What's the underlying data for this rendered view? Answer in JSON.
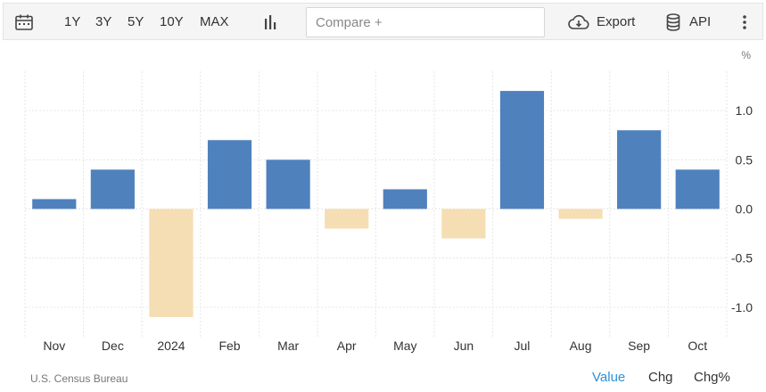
{
  "toolbar": {
    "ranges": [
      "1Y",
      "3Y",
      "5Y",
      "10Y",
      "MAX"
    ],
    "compare_placeholder": "Compare +",
    "export_label": "Export",
    "api_label": "API",
    "icons": [
      "calendar-icon",
      "bar-chart-icon",
      "cloud-download-icon",
      "database-icon",
      "more-vertical-icon"
    ]
  },
  "footer": {
    "source": "U.S. Census Bureau",
    "views": [
      "Value",
      "Chg",
      "Chg%"
    ],
    "active_view": "Value"
  },
  "colors": {
    "positive": "#4f81bd",
    "negative": "#f5deb3",
    "accent": "#2f8fd8"
  },
  "chart_data": {
    "type": "bar",
    "categories": [
      "Nov",
      "Dec",
      "2024",
      "Feb",
      "Mar",
      "Apr",
      "May",
      "Jun",
      "Jul",
      "Aug",
      "Sep",
      "Oct"
    ],
    "values": [
      0.1,
      0.4,
      -1.1,
      0.7,
      0.5,
      -0.2,
      0.2,
      -0.3,
      1.2,
      -0.1,
      0.8,
      0.4
    ],
    "unit": "%",
    "ylim": [
      -1.3,
      1.4
    ],
    "yticks": [
      1.0,
      0.5,
      0.0,
      -0.5,
      -1.0
    ],
    "ytick_labels": [
      "1.0",
      "0.5",
      "0.0",
      "-0.5",
      "-1.0"
    ],
    "grid": true,
    "axis_position": "right"
  }
}
